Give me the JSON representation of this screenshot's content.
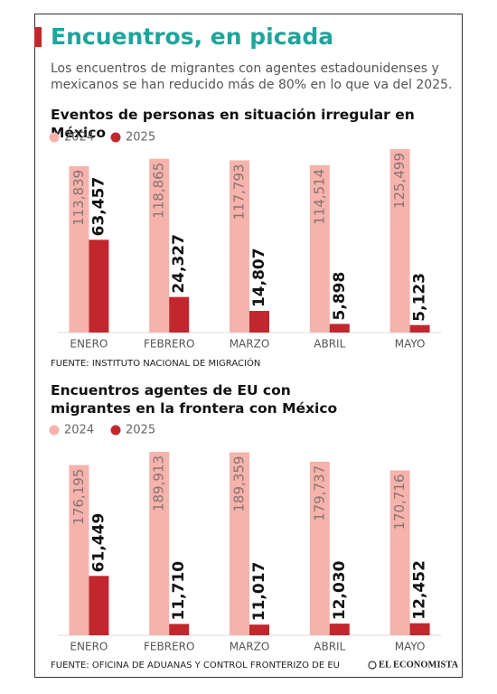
{
  "header": {
    "title": "Encuentros, en picada",
    "subtitle": "Los encuentros de migrantes con agentes estadounidenses y mexicanos se han reducido más de 80% en lo que va del 2025."
  },
  "chart_data": [
    {
      "type": "bar",
      "title": "Eventos de personas en situación irregular en México",
      "categories": [
        "ENERO",
        "FEBRERO",
        "MARZO",
        "ABRIL",
        "MAYO"
      ],
      "series": [
        {
          "name": "2024",
          "color": "#f5b3ac",
          "values": [
            113839,
            118865,
            117793,
            114514,
            125499
          ],
          "value_labels": [
            "113,839",
            "118,865",
            "117,793",
            "114,514",
            "125,499"
          ]
        },
        {
          "name": "2025",
          "color": "#c1272d",
          "values": [
            63457,
            24327,
            14807,
            5898,
            5123
          ],
          "value_labels": [
            "63,457",
            "24,327",
            "14,807",
            "5,898",
            "5,123"
          ]
        }
      ],
      "source": "FUENTE: INSTITUTO NACIONAL DE MIGRACIÓN"
    },
    {
      "type": "bar",
      "title": "Encuentros agentes de EU con migrantes en la frontera con México",
      "categories": [
        "ENERO",
        "FEBRERO",
        "MARZO",
        "ABRIL",
        "MAYO"
      ],
      "series": [
        {
          "name": "2024",
          "color": "#f5b3ac",
          "values": [
            176195,
            189913,
            189359,
            179737,
            170716
          ],
          "value_labels": [
            "176,195",
            "189,913",
            "189,359",
            "179,737",
            "170,716"
          ]
        },
        {
          "name": "2025",
          "color": "#c1272d",
          "values": [
            61449,
            11710,
            11017,
            12030,
            12452
          ],
          "value_labels": [
            "61,449",
            "11,710",
            "11,017",
            "12,030",
            "12,452"
          ]
        }
      ],
      "source": "FUENTE: OFICINA DE ADUANAS Y CONTROL FRONTERIZO DE EU"
    }
  ],
  "logo": "EL ECONOMISTA"
}
